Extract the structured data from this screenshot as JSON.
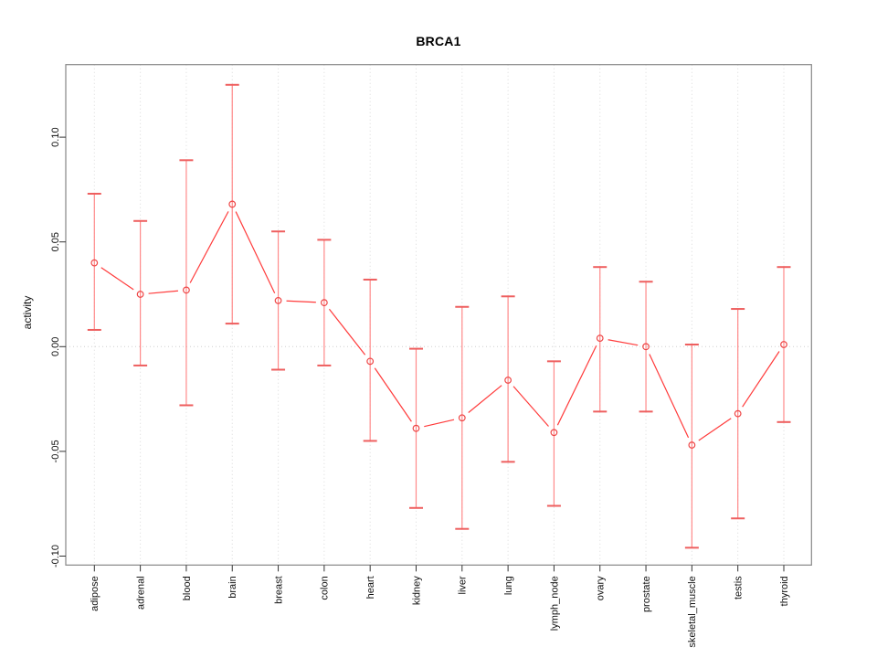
{
  "title": "BRCA1",
  "chart_data": {
    "type": "line",
    "title": "BRCA1",
    "xlabel": "",
    "ylabel": "activity",
    "ylim": [
      -0.105,
      0.135
    ],
    "yticks": [
      -0.1,
      -0.05,
      0.0,
      0.05,
      0.1
    ],
    "ytick_labels": [
      "-0.10",
      "-0.05",
      "0.00",
      "0.05",
      "0.10"
    ],
    "grid": "light dotted vertical gridline at each category; light dotted horizontal line at y=0",
    "legend": "none",
    "marker": "open-circle",
    "style": "R base plot, points joined by line segments with gaps (type=b), vertical error bars with caps",
    "categories": [
      "adipose",
      "adrenal",
      "blood",
      "brain",
      "breast",
      "colon",
      "heart",
      "kidney",
      "liver",
      "lung",
      "lymph_node",
      "ovary",
      "prostate",
      "skeletal_muscle",
      "testis",
      "thyroid"
    ],
    "series": [
      {
        "name": "BRCA1 activity",
        "values": [
          0.04,
          0.025,
          0.027,
          0.068,
          0.022,
          0.021,
          -0.007,
          -0.039,
          -0.034,
          -0.016,
          -0.041,
          0.004,
          0.0,
          -0.047,
          -0.032,
          0.001
        ],
        "ci_high": [
          0.073,
          0.06,
          0.089,
          0.125,
          0.055,
          0.051,
          0.032,
          -0.001,
          0.019,
          0.024,
          -0.007,
          0.038,
          0.031,
          0.001,
          0.018,
          0.038
        ],
        "ci_low": [
          0.008,
          -0.009,
          -0.028,
          0.011,
          -0.011,
          -0.009,
          -0.045,
          -0.077,
          -0.087,
          -0.055,
          -0.076,
          -0.031,
          -0.031,
          -0.096,
          -0.082,
          -0.036
        ]
      }
    ],
    "colors": {
      "line": "#ff3b3b",
      "error_bar": "#ff8a8a",
      "error_cap": "#ee5f5f",
      "marker": "#ee4646",
      "frame": "#878787",
      "grid": "#dadada",
      "zero_line": "#cfcfcf",
      "tick": "#333333",
      "text": "#111111"
    }
  }
}
